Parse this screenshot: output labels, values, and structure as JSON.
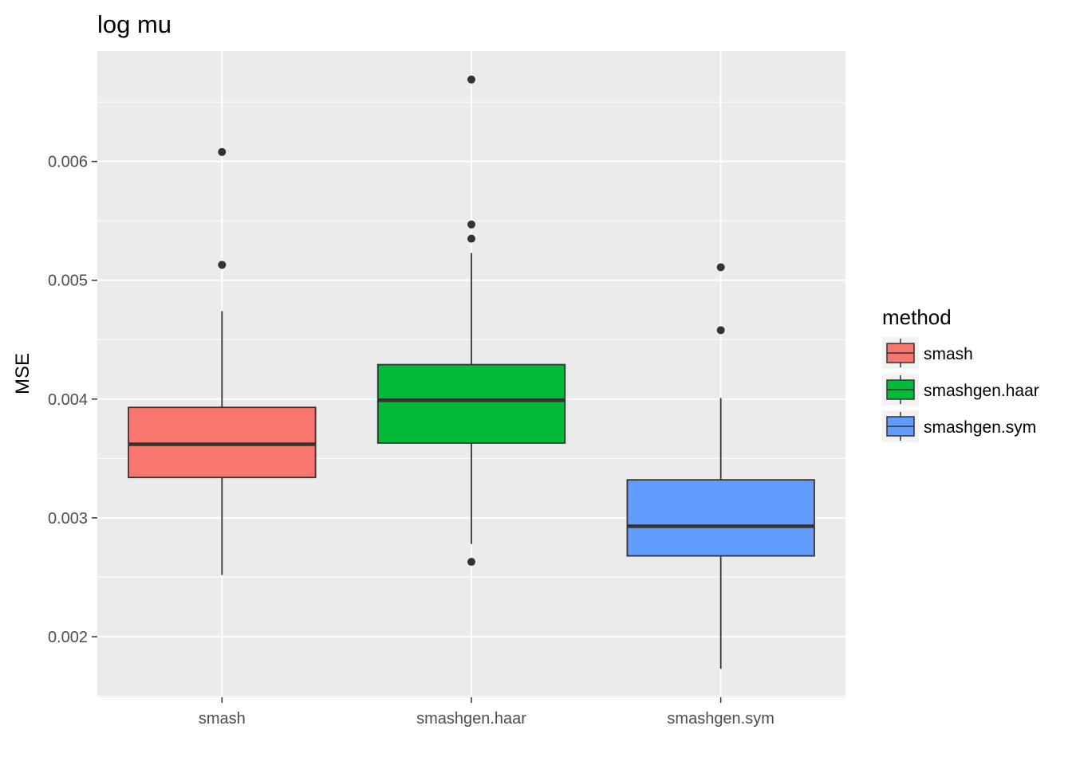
{
  "chart_data": {
    "type": "boxplot",
    "title": "log mu",
    "xlabel": "",
    "ylabel": "MSE",
    "ylim": [
      0.00149,
      0.00693
    ],
    "yticks": [
      0.002,
      0.003,
      0.004,
      0.005,
      0.006
    ],
    "ytick_labels": [
      "0.002",
      "0.003",
      "0.004",
      "0.005",
      "0.006"
    ],
    "grid": true,
    "legend": {
      "title": "method",
      "position": "right"
    },
    "categories": [
      "smash",
      "smashgen.haar",
      "smashgen.sym"
    ],
    "series": [
      {
        "name": "smash",
        "color": "#F8766D",
        "whisker_low": 0.00252,
        "q1": 0.00334,
        "median": 0.00362,
        "q3": 0.00393,
        "whisker_high": 0.00474,
        "outliers": [
          0.00513,
          0.00608
        ]
      },
      {
        "name": "smashgen.haar",
        "color": "#00BA38",
        "whisker_low": 0.00278,
        "q1": 0.00363,
        "median": 0.00399,
        "q3": 0.00429,
        "whisker_high": 0.00523,
        "outliers": [
          0.00263,
          0.00535,
          0.00547,
          0.00669
        ]
      },
      {
        "name": "smashgen.sym",
        "color": "#619CFF",
        "whisker_low": 0.00173,
        "q1": 0.00268,
        "median": 0.00293,
        "q3": 0.00332,
        "whisker_high": 0.00401,
        "outliers": [
          0.00458,
          0.00511
        ]
      }
    ]
  }
}
